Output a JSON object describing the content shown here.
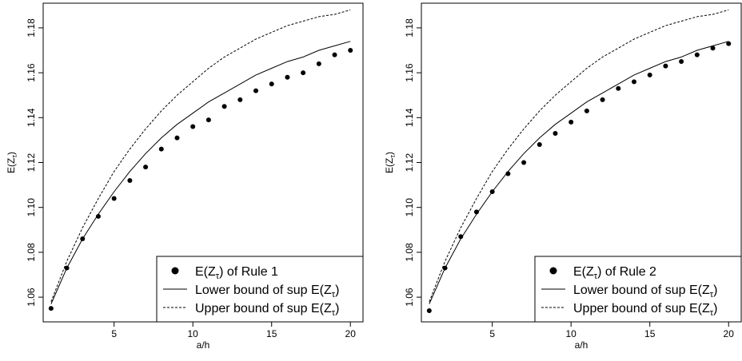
{
  "chart_data": [
    {
      "type": "scatter",
      "xlabel": "a/h",
      "ylabel": "E(Z",
      "ylabel_sub": "τ",
      "ylabel_close": ")",
      "xlim": [
        0.5,
        20.8
      ],
      "ylim": [
        1.049,
        1.191
      ],
      "x_ticks": [
        5,
        10,
        15,
        20
      ],
      "y_ticks": [
        1.06,
        1.08,
        1.1,
        1.12,
        1.14,
        1.16,
        1.18
      ],
      "y_tick_labels": [
        "1.06",
        "1.08",
        "1.10",
        "1.12",
        "1.14",
        "1.16",
        "1.18"
      ],
      "grid": false,
      "legend_position": "bottom-right",
      "series": [
        {
          "kind": "points",
          "legend_pre": "E(Z",
          "legend_sub": "τ",
          "legend_post": ") of Rule 1",
          "x": [
            1,
            2,
            3,
            4,
            5,
            6,
            7,
            8,
            9,
            10,
            11,
            12,
            13,
            14,
            15,
            16,
            17,
            18,
            19,
            20
          ],
          "y": [
            1.055,
            1.073,
            1.086,
            1.096,
            1.104,
            1.112,
            1.118,
            1.126,
            1.131,
            1.136,
            1.139,
            1.145,
            1.148,
            1.152,
            1.155,
            1.158,
            1.16,
            1.164,
            1.168,
            1.17
          ]
        },
        {
          "kind": "line",
          "legend_pre": "Lower bound of sup E(Z",
          "legend_sub": "τ",
          "legend_post": ")",
          "x": [
            1,
            2,
            3,
            4,
            5,
            6,
            7,
            8,
            9,
            10,
            11,
            12,
            13,
            14,
            15,
            16,
            17,
            18,
            19,
            20
          ],
          "y": [
            1.057,
            1.073,
            1.086,
            1.097,
            1.107,
            1.116,
            1.124,
            1.131,
            1.137,
            1.142,
            1.147,
            1.151,
            1.155,
            1.159,
            1.162,
            1.165,
            1.167,
            1.17,
            1.172,
            1.174
          ]
        },
        {
          "kind": "dashed",
          "legend_pre": "Upper bound of sup E(Z",
          "legend_sub": "τ",
          "legend_post": ")",
          "x": [
            1,
            2,
            3,
            4,
            5,
            6,
            7,
            8,
            9,
            10,
            11,
            12,
            13,
            14,
            15,
            16,
            17,
            18,
            19,
            20
          ],
          "y": [
            1.058,
            1.076,
            1.091,
            1.104,
            1.116,
            1.126,
            1.135,
            1.143,
            1.15,
            1.156,
            1.162,
            1.167,
            1.171,
            1.175,
            1.178,
            1.181,
            1.183,
            1.185,
            1.186,
            1.188
          ]
        }
      ]
    },
    {
      "type": "scatter",
      "xlabel": "a/h",
      "ylabel": "E(Z",
      "ylabel_sub": "τ",
      "ylabel_close": ")",
      "xlim": [
        0.5,
        20.8
      ],
      "ylim": [
        1.049,
        1.191
      ],
      "x_ticks": [
        5,
        10,
        15,
        20
      ],
      "y_ticks": [
        1.06,
        1.08,
        1.1,
        1.12,
        1.14,
        1.16,
        1.18
      ],
      "y_tick_labels": [
        "1.06",
        "1.08",
        "1.10",
        "1.12",
        "1.14",
        "1.16",
        "1.18"
      ],
      "grid": false,
      "legend_position": "bottom-right",
      "series": [
        {
          "kind": "points",
          "legend_pre": "E(Z",
          "legend_sub": "τ",
          "legend_post": ") of Rule 2",
          "x": [
            1,
            2,
            3,
            4,
            5,
            6,
            7,
            8,
            9,
            10,
            11,
            12,
            13,
            14,
            15,
            16,
            17,
            18,
            19,
            20
          ],
          "y": [
            1.054,
            1.073,
            1.087,
            1.098,
            1.107,
            1.115,
            1.12,
            1.128,
            1.133,
            1.138,
            1.143,
            1.148,
            1.153,
            1.156,
            1.159,
            1.163,
            1.165,
            1.168,
            1.171,
            1.173
          ]
        },
        {
          "kind": "line",
          "legend_pre": "Lower bound of sup E(Z",
          "legend_sub": "τ",
          "legend_post": ")",
          "x": [
            1,
            2,
            3,
            4,
            5,
            6,
            7,
            8,
            9,
            10,
            11,
            12,
            13,
            14,
            15,
            16,
            17,
            18,
            19,
            20
          ],
          "y": [
            1.057,
            1.073,
            1.086,
            1.097,
            1.107,
            1.116,
            1.124,
            1.131,
            1.137,
            1.142,
            1.147,
            1.151,
            1.155,
            1.159,
            1.162,
            1.165,
            1.167,
            1.17,
            1.172,
            1.174
          ]
        },
        {
          "kind": "dashed",
          "legend_pre": "Upper bound of sup E(Z",
          "legend_sub": "τ",
          "legend_post": ")",
          "x": [
            1,
            2,
            3,
            4,
            5,
            6,
            7,
            8,
            9,
            10,
            11,
            12,
            13,
            14,
            15,
            16,
            17,
            18,
            19,
            20
          ],
          "y": [
            1.058,
            1.076,
            1.091,
            1.104,
            1.116,
            1.126,
            1.135,
            1.143,
            1.15,
            1.156,
            1.162,
            1.167,
            1.171,
            1.175,
            1.178,
            1.181,
            1.183,
            1.185,
            1.186,
            1.188
          ]
        }
      ]
    }
  ]
}
